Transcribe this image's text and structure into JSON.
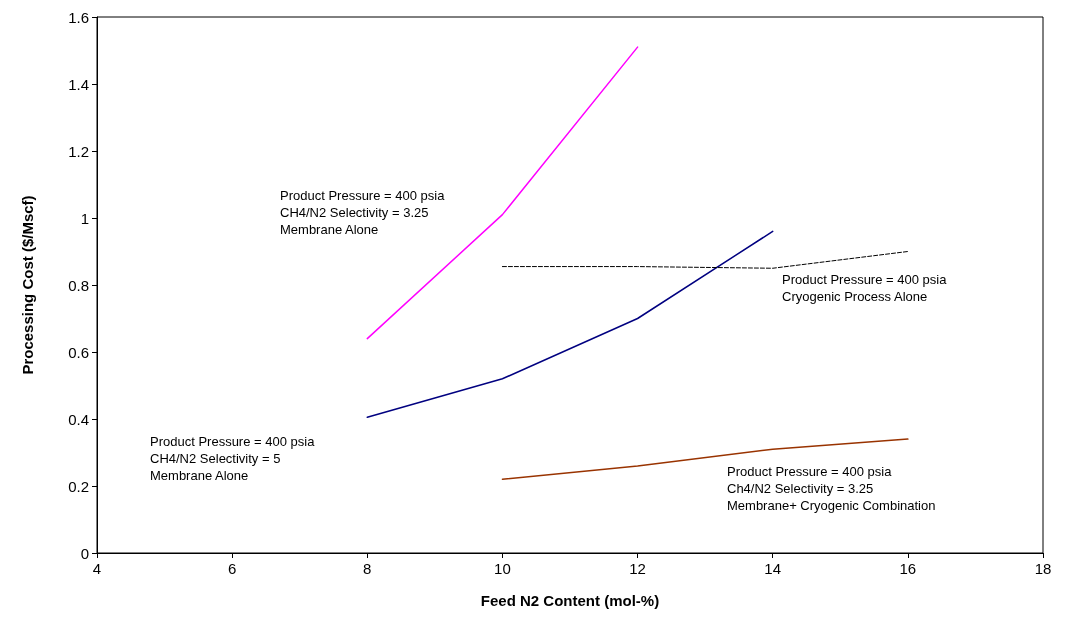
{
  "chart_data": {
    "type": "line",
    "xlabel": "Feed N2 Content (mol-%)",
    "ylabel": "Processing Cost ($/Mscf)",
    "xlim": [
      4,
      18
    ],
    "xticks": [
      4,
      6,
      8,
      10,
      12,
      14,
      16,
      18
    ],
    "ylim": [
      0,
      1.6
    ],
    "yticks": [
      0,
      0.2,
      0.4,
      0.6,
      0.8,
      1,
      1.2,
      1.4,
      1.6
    ],
    "grid": false,
    "marker": "none",
    "series": [
      {
        "color": "#ff00ff",
        "x": [
          8,
          10,
          12
        ],
        "values": [
          0.64,
          1.01,
          1.51
        ]
      },
      {
        "color": "#000080",
        "x": [
          8,
          10,
          12,
          14
        ],
        "values": [
          0.405,
          0.52,
          0.7,
          0.96
        ]
      },
      {
        "color": "#993300",
        "x": [
          10,
          12,
          14,
          16
        ],
        "values": [
          0.22,
          0.26,
          0.31,
          0.34
        ]
      },
      {
        "color": "#000000",
        "line_style": "dashed",
        "x": [
          10,
          12,
          14,
          16
        ],
        "values": [
          0.855,
          0.855,
          0.85,
          0.9
        ]
      }
    ],
    "annotations": [
      "Product Pressure = 400 psia\nCH4/N2 Selectivity = 3.25\nMembrane Alone",
      "Product Pressure = 400 psia\nCryogenic Process Alone",
      "Product Pressure = 400 psia\nCH4/N2 Selectivity = 5\nMembrane Alone",
      "Product Pressure = 400 psia\nCh4/N2 Selectivity = 3.25\nMembrane+ Cryogenic Combination"
    ]
  }
}
